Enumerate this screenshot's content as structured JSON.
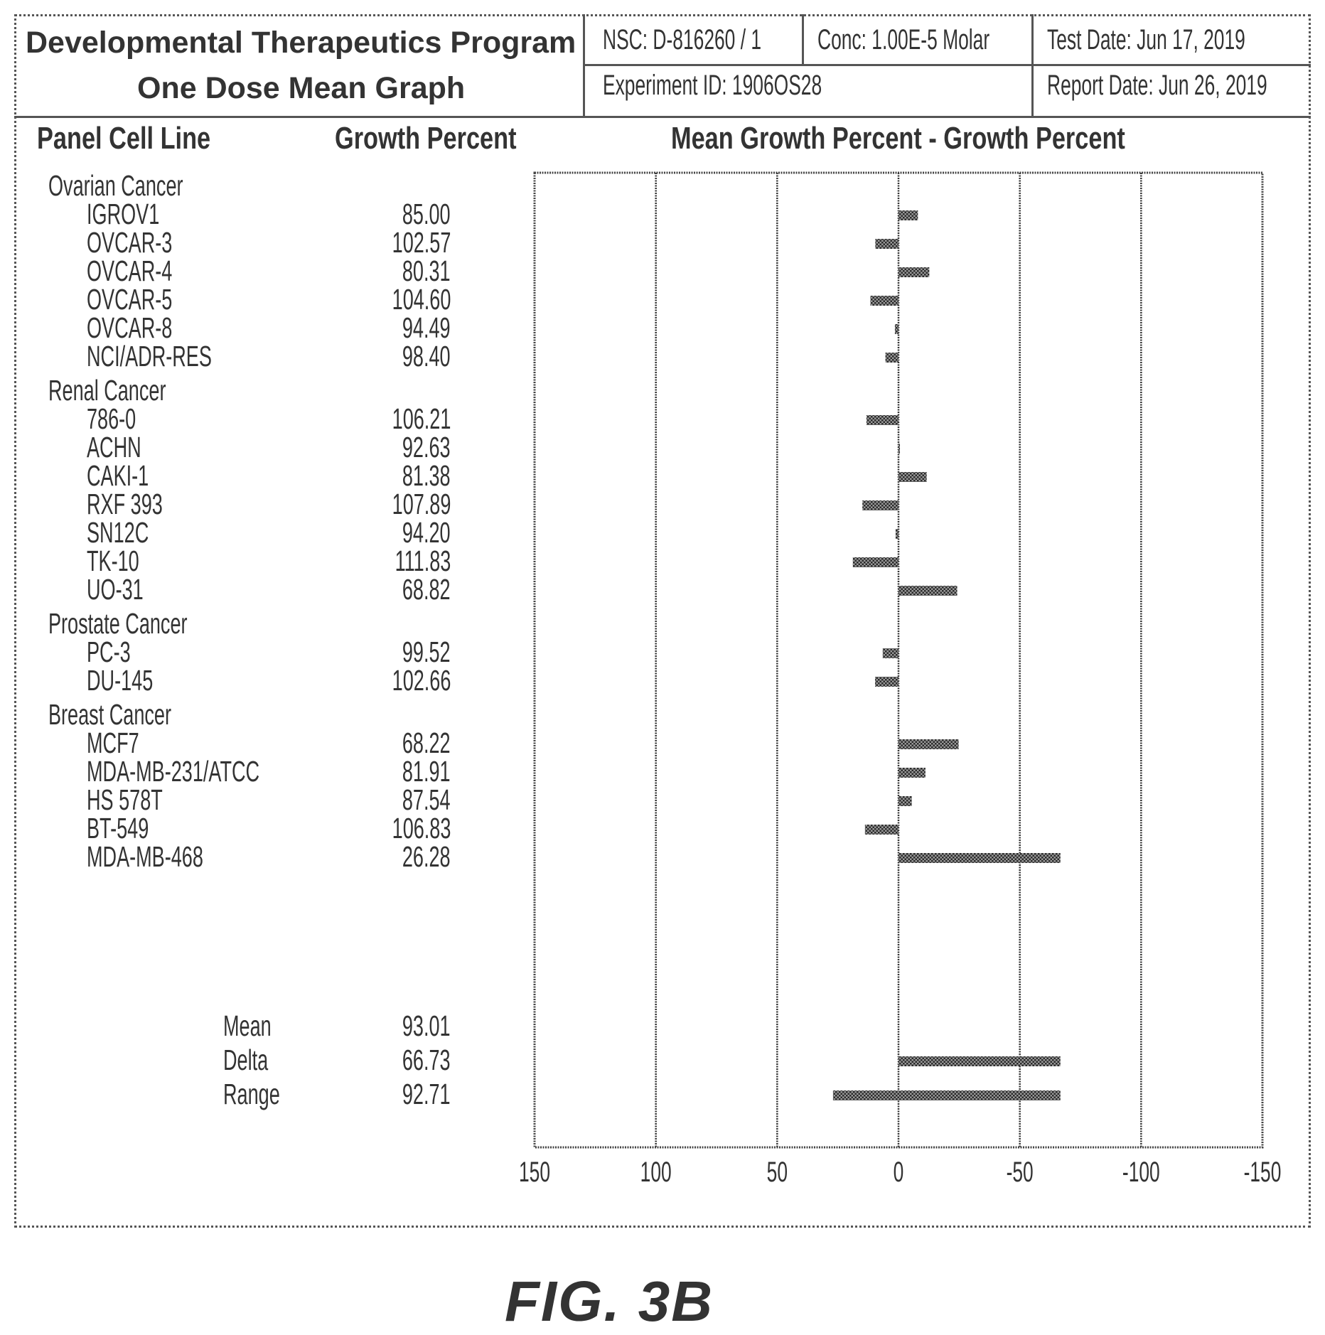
{
  "header": {
    "program": "Developmental Therapeutics Program",
    "graph_title": "One Dose Mean Graph",
    "nsc": "NSC: D-816260 / 1",
    "conc": "Conc: 1.00E-5 Molar",
    "test_date": "Test Date: Jun 17, 2019",
    "experiment_id": "Experiment ID: 1906OS28",
    "report_date": "Report Date: Jun 26, 2019"
  },
  "columns": {
    "panel": "Panel Cell Line",
    "growth": "Growth Percent",
    "chart": "Mean Growth Percent - Growth Percent"
  },
  "chart_data": {
    "type": "bar",
    "orientation": "horizontal",
    "title": "Mean Growth Percent - Growth Percent",
    "xlim": [
      150,
      -150
    ],
    "xticks": [
      "150",
      "100",
      "50",
      "0",
      "-50",
      "-100",
      "-150"
    ],
    "mean": 93.01,
    "groups": [
      {
        "panel": "Ovarian Cancer",
        "rows": [
          {
            "name": "IGROV1",
            "growth": "85.00"
          },
          {
            "name": "OVCAR-3",
            "growth": "102.57"
          },
          {
            "name": "OVCAR-4",
            "growth": "80.31"
          },
          {
            "name": "OVCAR-5",
            "growth": "104.60"
          },
          {
            "name": "OVCAR-8",
            "growth": "94.49"
          },
          {
            "name": "NCI/ADR-RES",
            "growth": "98.40"
          }
        ]
      },
      {
        "panel": "Renal Cancer",
        "rows": [
          {
            "name": "786-0",
            "growth": "106.21"
          },
          {
            "name": "ACHN",
            "growth": "92.63"
          },
          {
            "name": "CAKI-1",
            "growth": "81.38"
          },
          {
            "name": "RXF 393",
            "growth": "107.89"
          },
          {
            "name": "SN12C",
            "growth": "94.20"
          },
          {
            "name": "TK-10",
            "growth": "111.83"
          },
          {
            "name": "UO-31",
            "growth": "68.82"
          }
        ]
      },
      {
        "panel": "Prostate Cancer",
        "rows": [
          {
            "name": "PC-3",
            "growth": "99.52"
          },
          {
            "name": "DU-145",
            "growth": "102.66"
          }
        ]
      },
      {
        "panel": "Breast Cancer",
        "rows": [
          {
            "name": "MCF7",
            "growth": "68.22"
          },
          {
            "name": "MDA-MB-231/ATCC",
            "growth": "81.91"
          },
          {
            "name": "HS 578T",
            "growth": "87.54"
          },
          {
            "name": "BT-549",
            "growth": "106.83"
          },
          {
            "name": "MDA-MB-468",
            "growth": "26.28"
          }
        ]
      }
    ],
    "summary": [
      {
        "name": "Mean",
        "value": "93.01",
        "bar": null
      },
      {
        "name": "Delta",
        "value": "66.73",
        "bar": [
          0,
          -66.73
        ]
      },
      {
        "name": "Range",
        "value": "92.71",
        "bar": [
          26.99,
          -66.73
        ]
      }
    ]
  },
  "caption": "FIG. 3B"
}
